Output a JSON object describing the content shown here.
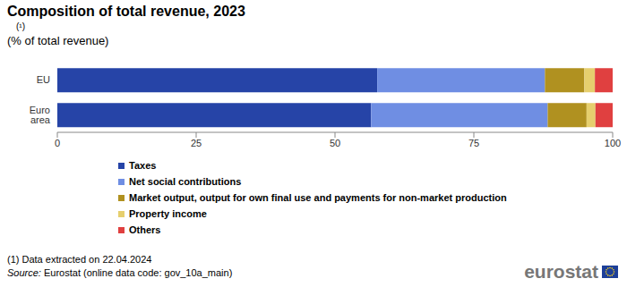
{
  "chart_data": {
    "type": "bar",
    "orientation": "horizontal",
    "stacked": true,
    "grid": false,
    "title": "Composition of total revenue, 2023",
    "subtitle": [
      "(¹)",
      "(% of total revenue)"
    ],
    "categories": [
      "EU",
      "Euro area"
    ],
    "series": [
      {
        "name": "Taxes",
        "color": "#2644a7",
        "values": [
          57.6,
          56.5
        ]
      },
      {
        "name": "Net social contributions",
        "color": "#6f8ee3",
        "values": [
          30.2,
          31.8
        ]
      },
      {
        "name": "Market output, output for own final use and payments for non-market production",
        "color": "#b09120",
        "values": [
          7.1,
          7.0
        ]
      },
      {
        "name": "Property income",
        "color": "#e6cf6e",
        "values": [
          1.9,
          1.6
        ]
      },
      {
        "name": "Others",
        "color": "#e04040",
        "values": [
          3.2,
          3.1
        ]
      }
    ],
    "xlim": [
      0,
      100
    ],
    "xticks": [
      0,
      25,
      50,
      75,
      100
    ],
    "footnote": "(1) Data extracted on 22.04.2024",
    "source_label": "Source:",
    "source": "Eurostat (online data code: gov_10a_main)",
    "logo": "eurostat"
  }
}
